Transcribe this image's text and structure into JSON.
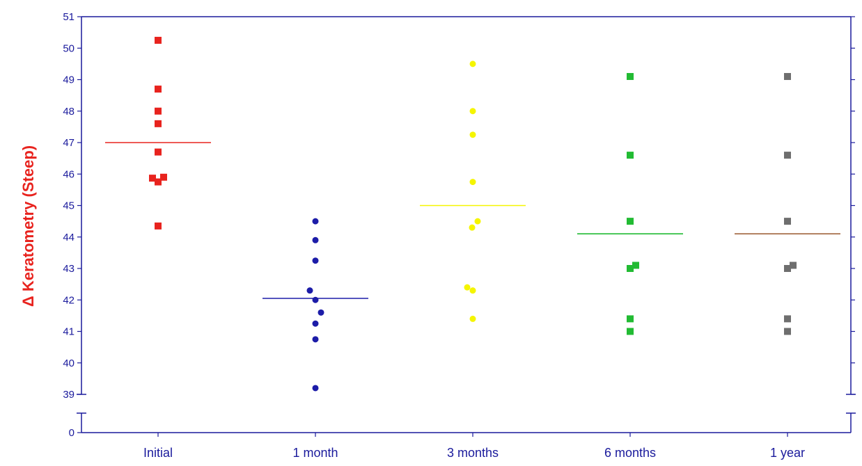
{
  "chart_data": {
    "type": "scatter",
    "ylabel": "Δ Keratometry (Steep)",
    "categories": [
      "Initial",
      "1 month",
      "3 months",
      "6 months",
      "1 year"
    ],
    "y_ticks": [
      39,
      40,
      41,
      42,
      43,
      44,
      45,
      46,
      47,
      48,
      49,
      50,
      51
    ],
    "y_ticks_lower": [
      0
    ],
    "ylim": [
      39,
      51
    ],
    "axis_break": true,
    "grid": false,
    "legend": "none",
    "axis_color": "#1a1a9c",
    "series": [
      {
        "category": "Initial",
        "marker": "square",
        "color": "#e8231e",
        "mean": 47.0,
        "points": [
          {
            "x": 0.0,
            "y": 50.25
          },
          {
            "x": 0.0,
            "y": 48.7
          },
          {
            "x": 0.0,
            "y": 48.0
          },
          {
            "x": 0.0,
            "y": 47.6
          },
          {
            "x": 0.0,
            "y": 46.7
          },
          {
            "x": -0.08,
            "y": 45.87
          },
          {
            "x": 0.0,
            "y": 45.75
          },
          {
            "x": 0.08,
            "y": 45.9
          },
          {
            "x": 0.0,
            "y": 44.35
          }
        ]
      },
      {
        "category": "1 month",
        "marker": "circle",
        "color": "#1c1ca8",
        "mean": 42.05,
        "points": [
          {
            "x": 0.0,
            "y": 44.5
          },
          {
            "x": 0.0,
            "y": 43.9
          },
          {
            "x": 0.0,
            "y": 43.25
          },
          {
            "x": -0.08,
            "y": 42.3
          },
          {
            "x": 0.0,
            "y": 42.0
          },
          {
            "x": 0.08,
            "y": 41.6
          },
          {
            "x": 0.0,
            "y": 41.25
          },
          {
            "x": 0.0,
            "y": 40.75
          },
          {
            "x": 0.0,
            "y": 39.2
          }
        ]
      },
      {
        "category": "3 months",
        "marker": "circle",
        "color": "#f5f500",
        "mean": 45.0,
        "points": [
          {
            "x": 0.0,
            "y": 49.5
          },
          {
            "x": 0.0,
            "y": 48.0
          },
          {
            "x": 0.0,
            "y": 47.25
          },
          {
            "x": 0.0,
            "y": 45.75
          },
          {
            "x": 0.07,
            "y": 44.5
          },
          {
            "x": -0.01,
            "y": 44.3
          },
          {
            "x": -0.08,
            "y": 42.4
          },
          {
            "x": 0.0,
            "y": 42.3
          },
          {
            "x": 0.0,
            "y": 41.4
          }
        ]
      },
      {
        "category": "6 months",
        "marker": "square",
        "color": "#22bb33",
        "mean": 44.1,
        "points": [
          {
            "x": 0.0,
            "y": 49.1
          },
          {
            "x": 0.0,
            "y": 46.6
          },
          {
            "x": 0.0,
            "y": 44.5
          },
          {
            "x": 0.0,
            "y": 43.0
          },
          {
            "x": 0.08,
            "y": 43.1
          },
          {
            "x": 0.0,
            "y": 41.4
          },
          {
            "x": 0.0,
            "y": 41.0
          }
        ]
      },
      {
        "category": "1 year",
        "marker": "square",
        "color": "#6e6e6e",
        "mean_color": "#a0643c",
        "mean": 44.1,
        "points": [
          {
            "x": 0.0,
            "y": 49.1
          },
          {
            "x": 0.0,
            "y": 46.6
          },
          {
            "x": 0.0,
            "y": 44.5
          },
          {
            "x": 0.0,
            "y": 43.0
          },
          {
            "x": 0.08,
            "y": 43.1
          },
          {
            "x": 0.0,
            "y": 41.4
          },
          {
            "x": 0.0,
            "y": 41.0
          }
        ]
      }
    ]
  }
}
